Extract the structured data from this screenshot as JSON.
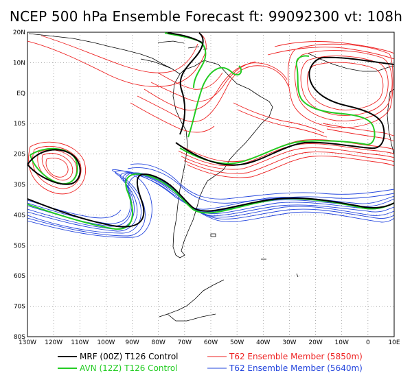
{
  "title": "NCEP 500 hPa Ensemble Forecast  ft: 99092300 vt: 108h",
  "map": {
    "lat_labels": [
      "20N",
      "10N",
      "EQ",
      "10S",
      "20S",
      "30S",
      "40S",
      "50S",
      "60S",
      "70S",
      "80S"
    ],
    "lon_labels": [
      "130W",
      "120W",
      "110W",
      "100W",
      "90W",
      "80W",
      "70W",
      "60W",
      "50W",
      "40W",
      "30W",
      "20W",
      "10W",
      "0",
      "10E"
    ],
    "lon_range": [
      -130,
      10
    ],
    "lat_range": [
      -80,
      20
    ],
    "grid": "dotted"
  },
  "legend": [
    {
      "label": "MRF (00Z) T126 Control",
      "color": "#000000"
    },
    {
      "label": "AVN (12Z) T126 Control",
      "color": "#22cc22"
    },
    {
      "label": "T62 Ensemble Member (5850m)",
      "color": "#ee2222"
    },
    {
      "label": "T62 Ensemble Member (5640m)",
      "color": "#2244dd"
    }
  ]
}
